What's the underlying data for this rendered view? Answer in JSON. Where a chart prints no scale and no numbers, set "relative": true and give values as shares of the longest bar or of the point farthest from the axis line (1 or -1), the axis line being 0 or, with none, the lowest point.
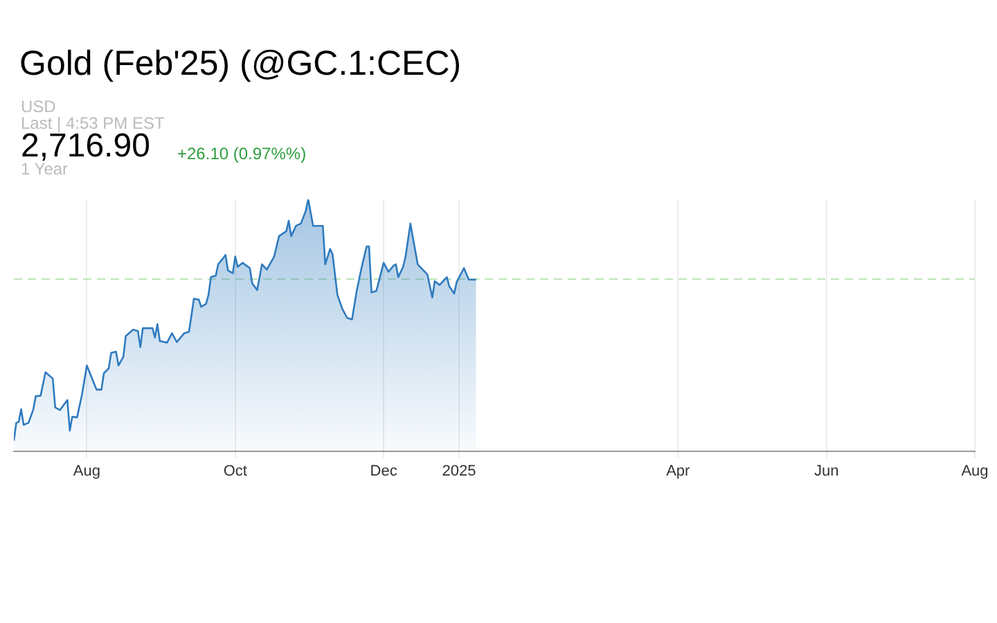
{
  "chart_data": {
    "type": "area",
    "title": "Gold (Feb'25) (@GC.1:CEC)",
    "annotations": [
      "USD",
      "Last | 4:53 PM EST",
      "2,716.90",
      "+26.10 (0.97%%)",
      "1 Year"
    ],
    "relative": true,
    "grid": "x",
    "line_style": "solid",
    "xlim": [
      "2024-07-02",
      "2025-08-01"
    ],
    "xticks": [
      {
        "value": "2024-08-01",
        "label": "Aug"
      },
      {
        "value": "2024-10-01",
        "label": "Oct"
      },
      {
        "value": "2024-12-01",
        "label": "Dec"
      },
      {
        "value": "2025-01-01",
        "label": "2025"
      },
      {
        "value": "2025-04-01",
        "label": "Apr"
      },
      {
        "value": "2025-06-01",
        "label": "Jun"
      },
      {
        "value": "2025-08-01",
        "label": "Aug"
      }
    ],
    "ref_lines": [
      {
        "axis": "y",
        "value": 0.683,
        "color": "#b9e3b2",
        "line_style": "dashed"
      }
    ],
    "x": [
      "2024-07-02",
      "2024-07-03",
      "2024-07-04",
      "2024-07-05",
      "2024-07-06",
      "2024-07-08",
      "2024-07-10",
      "2024-07-11",
      "2024-07-13",
      "2024-07-15",
      "2024-07-18",
      "2024-07-19",
      "2024-07-21",
      "2024-07-24",
      "2024-07-25",
      "2024-07-26",
      "2024-07-28",
      "2024-07-30",
      "2024-08-01",
      "2024-08-04",
      "2024-08-05",
      "2024-08-07",
      "2024-08-08",
      "2024-08-10",
      "2024-08-11",
      "2024-08-13",
      "2024-08-14",
      "2024-08-16",
      "2024-08-17",
      "2024-08-20",
      "2024-08-22",
      "2024-08-23",
      "2024-08-24",
      "2024-08-28",
      "2024-08-29",
      "2024-08-30",
      "2024-08-31",
      "2024-09-03",
      "2024-09-05",
      "2024-09-07",
      "2024-09-10",
      "2024-09-12",
      "2024-09-14",
      "2024-09-16",
      "2024-09-17",
      "2024-09-19",
      "2024-09-20",
      "2024-09-21",
      "2024-09-23",
      "2024-09-24",
      "2024-09-26",
      "2024-09-27",
      "2024-09-28",
      "2024-09-30",
      "2024-10-01",
      "2024-10-02",
      "2024-10-04",
      "2024-10-07",
      "2024-10-08",
      "2024-10-10",
      "2024-10-12",
      "2024-10-14",
      "2024-10-17",
      "2024-10-19",
      "2024-10-22",
      "2024-10-23",
      "2024-10-24",
      "2024-10-26",
      "2024-10-28",
      "2024-10-30",
      "2024-10-31",
      "2024-11-02",
      "2024-11-06",
      "2024-11-07",
      "2024-11-09",
      "2024-11-10",
      "2024-11-12",
      "2024-11-14",
      "2024-11-16",
      "2024-11-18",
      "2024-11-20",
      "2024-11-22",
      "2024-11-24",
      "2024-11-25",
      "2024-11-26",
      "2024-11-28",
      "2024-12-01",
      "2024-12-03",
      "2024-12-05",
      "2024-12-06",
      "2024-12-07",
      "2024-12-09",
      "2024-12-10",
      "2024-12-12",
      "2024-12-15",
      "2024-12-19",
      "2024-12-21",
      "2024-12-22",
      "2024-12-24",
      "2024-12-27",
      "2024-12-28",
      "2024-12-30",
      "2024-12-31",
      "2025-01-03",
      "2025-01-05",
      "2025-01-08"
    ],
    "series": [
      {
        "color": "#2f7bbf",
        "values": [
          0.041,
          0.112,
          0.116,
          0.166,
          0.104,
          0.112,
          0.165,
          0.218,
          0.22,
          0.313,
          0.288,
          0.173,
          0.163,
          0.203,
          0.081,
          0.136,
          0.134,
          0.224,
          0.34,
          0.268,
          0.244,
          0.244,
          0.309,
          0.329,
          0.39,
          0.395,
          0.34,
          0.374,
          0.457,
          0.482,
          0.477,
          0.413,
          0.488,
          0.488,
          0.451,
          0.504,
          0.437,
          0.431,
          0.468,
          0.433,
          0.468,
          0.474,
          0.605,
          0.602,
          0.573,
          0.585,
          0.62,
          0.691,
          0.697,
          0.742,
          0.766,
          0.779,
          0.718,
          0.707,
          0.773,
          0.732,
          0.748,
          0.727,
          0.666,
          0.64,
          0.742,
          0.721,
          0.773,
          0.854,
          0.874,
          0.915,
          0.854,
          0.895,
          0.904,
          0.955,
          1,
          0.895,
          0.895,
          0.742,
          0.803,
          0.782,
          0.62,
          0.565,
          0.529,
          0.523,
          0.64,
          0.732,
          0.813,
          0.813,
          0.63,
          0.636,
          0.748,
          0.712,
          0.736,
          0.742,
          0.691,
          0.732,
          0.773,
          0.904,
          0.742,
          0.701,
          0.61,
          0.675,
          0.66,
          0.691,
          0.654,
          0.626,
          0.671,
          0.727,
          0.681,
          0.681
        ]
      }
    ]
  }
}
